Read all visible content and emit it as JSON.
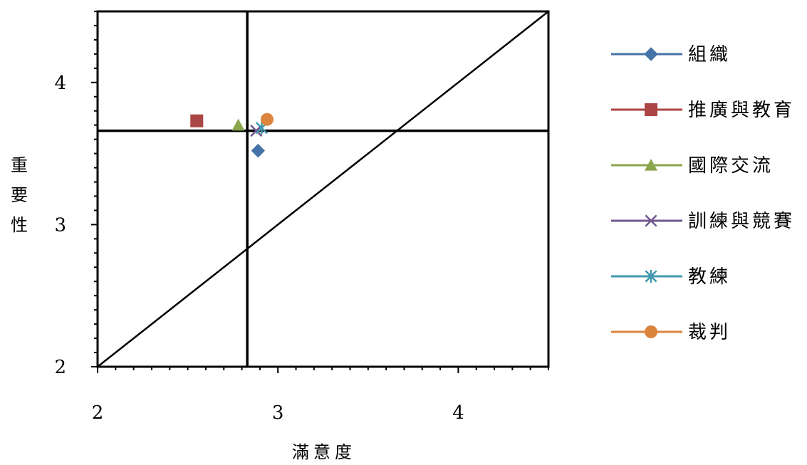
{
  "chart_data": {
    "type": "scatter",
    "xlabel": "滿意度",
    "ylabel": "重要性",
    "xlim": [
      2,
      4.5
    ],
    "ylim": [
      2,
      4.5
    ],
    "x_ticks": [
      "2",
      "3",
      "4"
    ],
    "y_ticks": [
      "2",
      "3",
      "4"
    ],
    "reference_lines": {
      "vertical_x": 2.83,
      "horizontal_y": 3.66,
      "diagonal": "y = x"
    },
    "legend_position": "right",
    "series": [
      {
        "name": "組織",
        "x": 2.89,
        "y": 3.52,
        "color": "#4572A7",
        "marker": "diamond"
      },
      {
        "name": "推廣與教育",
        "x": 2.55,
        "y": 3.73,
        "color": "#AA4643",
        "marker": "square"
      },
      {
        "name": "國際交流",
        "x": 2.78,
        "y": 3.7,
        "color": "#89A54E",
        "marker": "triangle"
      },
      {
        "name": "訓練與競賽",
        "x": 2.88,
        "y": 3.66,
        "color": "#71588F",
        "marker": "x"
      },
      {
        "name": "教練",
        "x": 2.91,
        "y": 3.68,
        "color": "#4198AF",
        "marker": "star"
      },
      {
        "name": "裁判",
        "x": 2.94,
        "y": 3.74,
        "color": "#DB843D",
        "marker": "circle"
      }
    ]
  }
}
